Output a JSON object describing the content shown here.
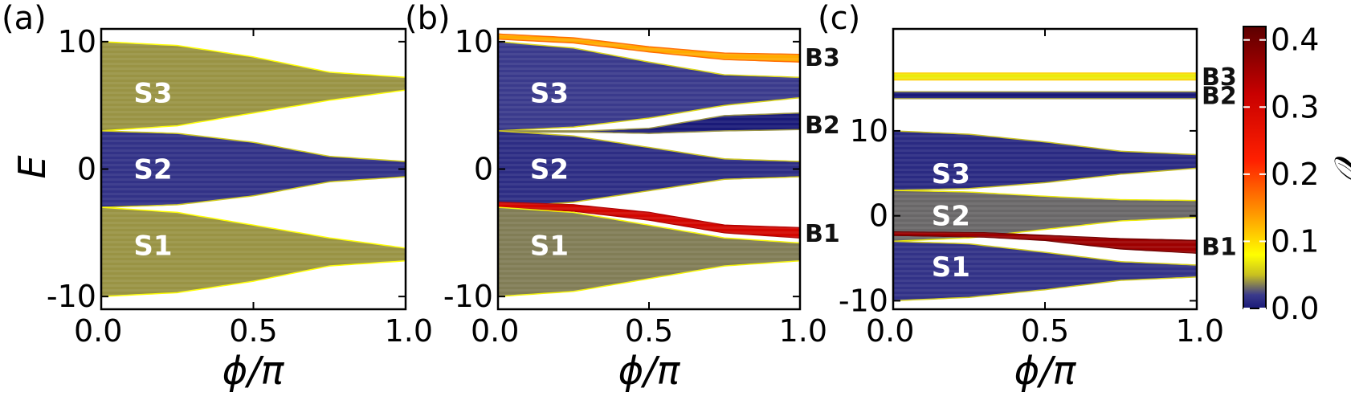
{
  "figure": {
    "colorbar": {
      "label": "𝒪",
      "range": [
        0.0,
        0.42
      ],
      "ticks": [
        "0.0",
        "0.1",
        "0.2",
        "0.3",
        "0.4"
      ],
      "tick_values": [
        0.0,
        0.1,
        0.2,
        0.3,
        0.4
      ],
      "stops": [
        {
          "value": 0.0,
          "color": "#1a1a78"
        },
        {
          "value": 0.02,
          "color": "#3a3a8c"
        },
        {
          "value": 0.05,
          "color": "#c8c020"
        },
        {
          "value": 0.08,
          "color": "#ffff00"
        },
        {
          "value": 0.14,
          "color": "#ff9a00"
        },
        {
          "value": 0.22,
          "color": "#ff2000"
        },
        {
          "value": 0.32,
          "color": "#c80000"
        },
        {
          "value": 0.42,
          "color": "#5c0000"
        }
      ]
    }
  },
  "chart_data": [
    {
      "type": "band-spectrum",
      "panel_label": "(a)",
      "xlabel": "ϕ/π",
      "ylabel": "E",
      "xlim": [
        0.0,
        1.0
      ],
      "ylim": [
        -11,
        11
      ],
      "xticks": [
        "0.0",
        "0.5",
        "1.0"
      ],
      "xtick_values": [
        0.0,
        0.5,
        1.0
      ],
      "yticks": [
        "10",
        "0",
        "-10"
      ],
      "ytick_values": [
        10,
        0,
        -10
      ],
      "bands": [
        {
          "name": "S3",
          "label_pos": [
            0.17,
            6
          ],
          "top": [
            [
              0,
              10
            ],
            [
              0.25,
              9.7
            ],
            [
              0.5,
              8.8
            ],
            [
              0.75,
              7.6
            ],
            [
              1,
              7.2
            ]
          ],
          "bottom": [
            [
              0,
              3
            ],
            [
              0.25,
              3.4
            ],
            [
              0.5,
              4.4
            ],
            [
              0.75,
              5.4
            ],
            [
              1,
              6.2
            ]
          ],
          "o": 0.04
        },
        {
          "name": "S2",
          "label_pos": [
            0.17,
            0
          ],
          "top": [
            [
              0,
              3
            ],
            [
              0.25,
              2.8
            ],
            [
              0.5,
              2.1
            ],
            [
              0.75,
              1.0
            ],
            [
              1,
              0.6
            ]
          ],
          "bottom": [
            [
              0,
              -3
            ],
            [
              0.25,
              -2.8
            ],
            [
              0.5,
              -2.1
            ],
            [
              0.75,
              -1.0
            ],
            [
              1,
              -0.6
            ]
          ],
          "o": 0.015
        },
        {
          "name": "S1",
          "label_pos": [
            0.17,
            -6
          ],
          "top": [
            [
              0,
              -3
            ],
            [
              0.25,
              -3.4
            ],
            [
              0.5,
              -4.4
            ],
            [
              0.75,
              -5.4
            ],
            [
              1,
              -6.2
            ]
          ],
          "bottom": [
            [
              0,
              -10
            ],
            [
              0.25,
              -9.7
            ],
            [
              0.5,
              -8.8
            ],
            [
              0.75,
              -7.6
            ],
            [
              1,
              -7.2
            ]
          ],
          "o": 0.04
        }
      ],
      "side_labels": []
    },
    {
      "type": "band-spectrum",
      "panel_label": "(b)",
      "xlabel": "ϕ/π",
      "ylabel": "",
      "xlim": [
        0.0,
        1.0
      ],
      "ylim": [
        -11,
        11
      ],
      "xticks": [
        "0.0",
        "0.5",
        "1.0"
      ],
      "xtick_values": [
        0.0,
        0.5,
        1.0
      ],
      "yticks": [
        "10",
        "0",
        "-10"
      ],
      "ytick_values": [
        10,
        0,
        -10
      ],
      "bands": [
        {
          "name": "B3",
          "label_pos": null,
          "top": [
            [
              0,
              10.6
            ],
            [
              0.25,
              10.3
            ],
            [
              0.5,
              9.6
            ],
            [
              0.75,
              9.1
            ],
            [
              1,
              9.0
            ]
          ],
          "bottom": [
            [
              0,
              10.2
            ],
            [
              0.25,
              9.9
            ],
            [
              0.5,
              9.2
            ],
            [
              0.75,
              8.6
            ],
            [
              1,
              8.4
            ]
          ],
          "o": 0.13
        },
        {
          "name": "S3",
          "label_pos": [
            0.17,
            6
          ],
          "top": [
            [
              0,
              10
            ],
            [
              0.25,
              9.5
            ],
            [
              0.5,
              8.4
            ],
            [
              0.75,
              7.4
            ],
            [
              1,
              7.2
            ]
          ],
          "bottom": [
            [
              0,
              3
            ],
            [
              0.25,
              3.3
            ],
            [
              0.5,
              4.0
            ],
            [
              0.75,
              5.0
            ],
            [
              1,
              5.6
            ]
          ],
          "o": 0.02
        },
        {
          "name": "B2",
          "label_pos": null,
          "top": [
            [
              0,
              3.0
            ],
            [
              0.3,
              3.0
            ],
            [
              0.5,
              3.2
            ],
            [
              0.75,
              4.2
            ],
            [
              1,
              4.4
            ]
          ],
          "bottom": [
            [
              0,
              2.9
            ],
            [
              0.3,
              2.9
            ],
            [
              0.5,
              2.8
            ],
            [
              0.75,
              3.0
            ],
            [
              1,
              3.1
            ]
          ],
          "o": 0.0
        },
        {
          "name": "S2",
          "label_pos": [
            0.17,
            0
          ],
          "top": [
            [
              0,
              3
            ],
            [
              0.25,
              2.6
            ],
            [
              0.5,
              1.7
            ],
            [
              0.75,
              0.8
            ],
            [
              1,
              0.6
            ]
          ],
          "bottom": [
            [
              0,
              -3
            ],
            [
              0.25,
              -2.6
            ],
            [
              0.5,
              -1.7
            ],
            [
              0.75,
              -0.8
            ],
            [
              1,
              -0.6
            ]
          ],
          "o": 0.012
        },
        {
          "name": "B1",
          "label_pos": null,
          "top": [
            [
              0,
              -2.6
            ],
            [
              0.25,
              -2.8
            ],
            [
              0.5,
              -3.4
            ],
            [
              0.75,
              -4.4
            ],
            [
              1,
              -4.6
            ]
          ],
          "bottom": [
            [
              0,
              -3.0
            ],
            [
              0.25,
              -3.3
            ],
            [
              0.5,
              -4.0
            ],
            [
              0.75,
              -5.0
            ],
            [
              1,
              -5.4
            ]
          ],
          "o": 0.3
        },
        {
          "name": "S1",
          "label_pos": [
            0.17,
            -6
          ],
          "top": [
            [
              0,
              -3
            ],
            [
              0.25,
              -3.4
            ],
            [
              0.5,
              -4.4
            ],
            [
              0.75,
              -5.4
            ],
            [
              1,
              -5.8
            ]
          ],
          "bottom": [
            [
              0,
              -10
            ],
            [
              0.25,
              -9.6
            ],
            [
              0.5,
              -8.6
            ],
            [
              0.75,
              -7.6
            ],
            [
              1,
              -7.2
            ]
          ],
          "o": 0.035
        }
      ],
      "side_labels": [
        {
          "text": "B3",
          "y": 8.8
        },
        {
          "text": "B2",
          "y": 3.5
        },
        {
          "text": "B1",
          "y": -5.0
        }
      ]
    },
    {
      "type": "band-spectrum",
      "panel_label": "(c)",
      "xlabel": "ϕ/π",
      "ylabel": "",
      "xlim": [
        0.0,
        1.0
      ],
      "ylim": [
        -11,
        22
      ],
      "xticks": [
        "0.0",
        "0.5",
        "1.0"
      ],
      "xtick_values": [
        0.0,
        0.5,
        1.0
      ],
      "yticks": [
        "10",
        "0",
        "-10"
      ],
      "ytick_values": [
        10,
        0,
        -10
      ],
      "bands": [
        {
          "name": "B3",
          "label_pos": null,
          "top": [
            [
              0,
              16.8
            ],
            [
              1,
              16.8
            ]
          ],
          "bottom": [
            [
              0,
              16.0
            ],
            [
              1,
              16.0
            ]
          ],
          "o": 0.07
        },
        {
          "name": "B2",
          "label_pos": null,
          "top": [
            [
              0,
              14.6
            ],
            [
              1,
              14.6
            ]
          ],
          "bottom": [
            [
              0,
              13.8
            ],
            [
              1,
              13.8
            ]
          ],
          "o": 0.0
        },
        {
          "name": "S3",
          "label_pos": [
            0.19,
            5
          ],
          "top": [
            [
              0,
              10
            ],
            [
              0.25,
              9.6
            ],
            [
              0.5,
              8.7
            ],
            [
              0.75,
              7.6
            ],
            [
              1,
              7.2
            ]
          ],
          "bottom": [
            [
              0,
              3
            ],
            [
              0.25,
              3.2
            ],
            [
              0.5,
              3.9
            ],
            [
              0.75,
              4.9
            ],
            [
              1,
              5.6
            ]
          ],
          "o": 0.01
        },
        {
          "name": "S2",
          "label_pos": [
            0.19,
            0
          ],
          "top": [
            [
              0,
              3
            ],
            [
              0.25,
              2.8
            ],
            [
              0.5,
              2.3
            ],
            [
              0.75,
              1.9
            ],
            [
              1,
              1.8
            ]
          ],
          "bottom": [
            [
              0,
              -3
            ],
            [
              0.25,
              -2.6
            ],
            [
              0.5,
              -1.6
            ],
            [
              0.75,
              -0.6
            ],
            [
              1,
              -0.2
            ]
          ],
          "o": 0.03
        },
        {
          "name": "B1",
          "label_pos": null,
          "top": [
            [
              0,
              -1.9
            ],
            [
              0.3,
              -2.0
            ],
            [
              0.5,
              -2.3
            ],
            [
              0.75,
              -2.7
            ],
            [
              1,
              -2.9
            ]
          ],
          "bottom": [
            [
              0,
              -2.3
            ],
            [
              0.3,
              -2.5
            ],
            [
              0.5,
              -2.9
            ],
            [
              0.75,
              -3.9
            ],
            [
              1,
              -4.4
            ]
          ],
          "o": 0.36
        },
        {
          "name": "S1",
          "label_pos": [
            0.19,
            -6
          ],
          "top": [
            [
              0,
              -3
            ],
            [
              0.25,
              -3.3
            ],
            [
              0.5,
              -4.3
            ],
            [
              0.75,
              -5.4
            ],
            [
              1,
              -5.8
            ]
          ],
          "bottom": [
            [
              0,
              -10
            ],
            [
              0.25,
              -9.6
            ],
            [
              0.5,
              -8.7
            ],
            [
              0.75,
              -7.6
            ],
            [
              1,
              -7.2
            ]
          ],
          "o": 0.015
        }
      ],
      "side_labels": [
        {
          "text": "B3",
          "y": 16.4
        },
        {
          "text": "B2",
          "y": 14.2
        },
        {
          "text": "B1",
          "y": -3.6
        }
      ]
    }
  ]
}
